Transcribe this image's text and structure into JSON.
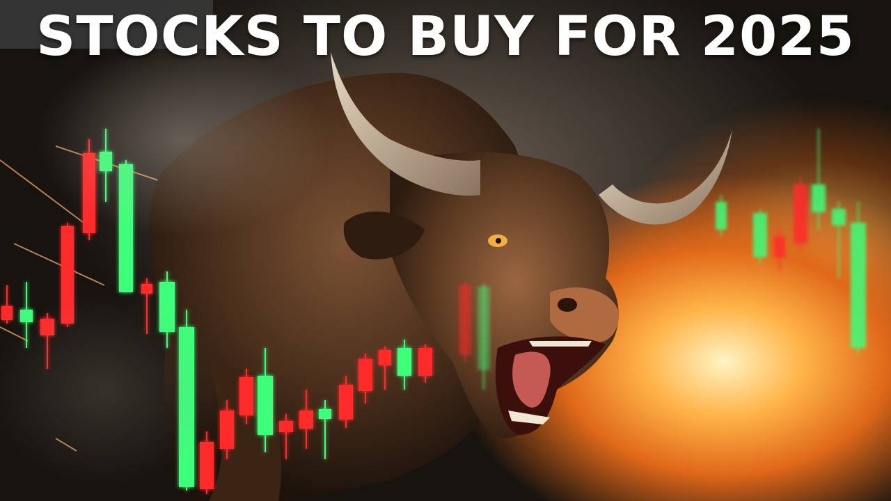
{
  "headline": "STOCKS TO BUY FOR 2025",
  "colors": {
    "candle_green": "#3dff7a",
    "candle_red": "#ff2a2a",
    "headline_text": "#ffffff",
    "fire": "#ff9a2e",
    "bull_body": "#5a3a22"
  },
  "scene": {
    "subject": "charging-bull",
    "background": "fire-and-smoke"
  }
}
